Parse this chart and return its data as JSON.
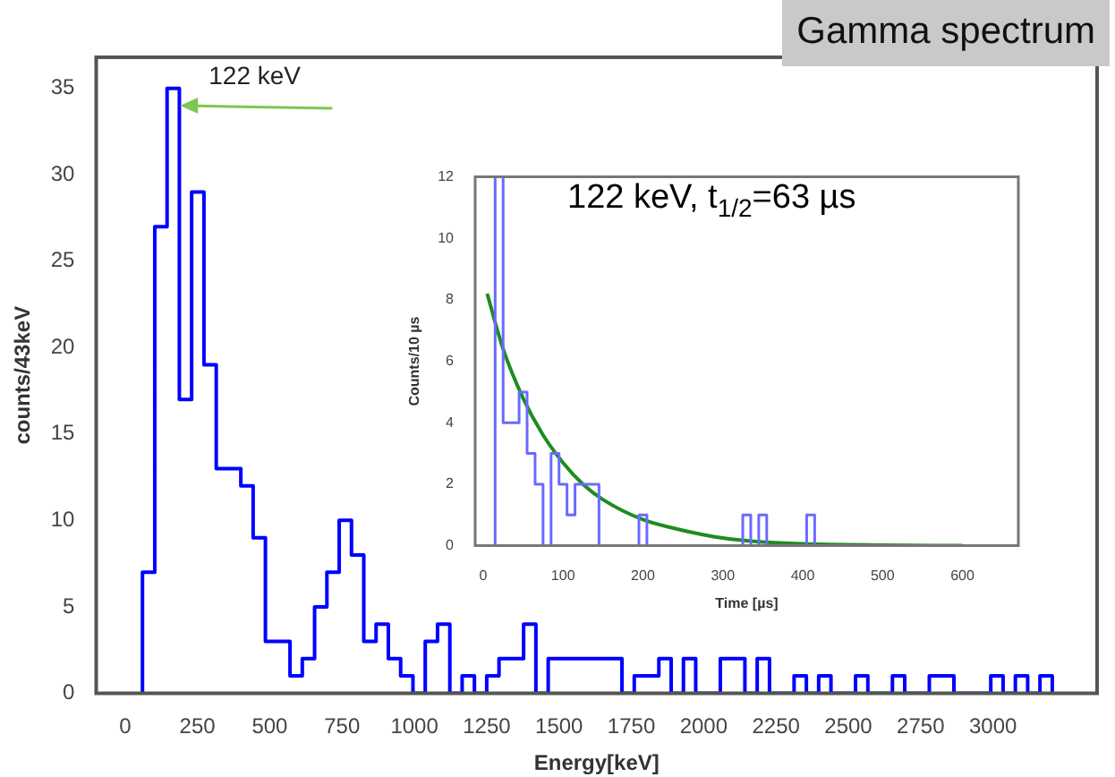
{
  "chart_data": [
    {
      "type": "histogram",
      "title": "Gamma spectrum",
      "xlabel": "Energy[keV]",
      "ylabel": "counts/43keV",
      "color": "#0000ff",
      "bins": [
        60,
        102.5,
        145,
        187.5,
        230,
        272.5,
        315,
        357.5,
        400,
        442.5,
        485,
        527.5,
        570,
        612.5,
        655,
        697.5,
        740,
        782.5,
        825,
        867.5,
        910,
        952.5,
        995,
        1037.5,
        1080,
        1122.5,
        1165,
        1207.5,
        1250,
        1292.5,
        1335,
        1377.5,
        1420,
        1462.5,
        1505,
        1547.5,
        1590,
        1632.5,
        1675,
        1717.5,
        1760,
        1802.5,
        1845,
        1887.5,
        1930,
        1972.5,
        2015,
        2057.5,
        2100,
        2142.5,
        2185,
        2227.5,
        2270,
        2312.5,
        2355,
        2397.5,
        2440,
        2482.5,
        2525,
        2567.5,
        2610,
        2652.5,
        2695,
        2737.5,
        2780,
        2822.5,
        2865,
        2907.5,
        2950,
        2992.5,
        3035,
        3077.5,
        3120,
        3162.5,
        3205
      ],
      "values": [
        7,
        27,
        35,
        17,
        29,
        19,
        13,
        13,
        12,
        9,
        3,
        3,
        1,
        2,
        5,
        7,
        10,
        8,
        3,
        4,
        2,
        1,
        0,
        3,
        4,
        0,
        1,
        0,
        1,
        2,
        2,
        4,
        0,
        2,
        2,
        2,
        2,
        2,
        2,
        0,
        1,
        1,
        2,
        0,
        2,
        0,
        0,
        2,
        2,
        0,
        2,
        0,
        0,
        1,
        0,
        1,
        0,
        0,
        1,
        0,
        0,
        1,
        0,
        0,
        1,
        1,
        0,
        0,
        0,
        1,
        0,
        1,
        0,
        1
      ],
      "xlim": [
        -100,
        3360
      ],
      "ylim": [
        0,
        36.8
      ],
      "xticks": [
        0,
        250,
        500,
        750,
        1000,
        1250,
        1500,
        1750,
        2000,
        2250,
        2500,
        2750,
        3000
      ],
      "yticks": [
        0,
        5,
        10,
        15,
        20,
        25,
        30,
        35
      ],
      "annotations": [
        {
          "text": "122 keV",
          "x": 190,
          "y": 34
        }
      ]
    },
    {
      "type": "histogram",
      "annotations": [
        "122 keV, t$_{1/2}$=63 µs"
      ],
      "xlabel": "Time [µs]",
      "ylabel": "Counts/10 µs",
      "series": [
        {
          "type": "histogram",
          "color": "#6a6aff",
          "bins": [
            15,
            25,
            35,
            45,
            55,
            65,
            75,
            85,
            95,
            105,
            115,
            125,
            135,
            145,
            155,
            165,
            175,
            185,
            195,
            205,
            215,
            225,
            235,
            245,
            255,
            265,
            275,
            285,
            295,
            305,
            315,
            325,
            335,
            345,
            355,
            365,
            375,
            385,
            395,
            405,
            415
          ],
          "values": [
            12,
            4,
            4,
            5,
            3,
            2,
            0,
            3,
            2,
            1,
            2,
            2,
            2,
            0,
            0,
            0,
            0,
            0,
            1,
            0,
            0,
            0,
            0,
            0,
            0,
            0,
            0,
            0,
            0,
            0,
            0,
            1,
            0,
            1,
            0,
            0,
            0,
            0,
            0,
            1
          ]
        },
        {
          "type": "line",
          "color": "#1e8c1e",
          "x": [
            5,
            25,
            50,
            75,
            100,
            125,
            150,
            200,
            250,
            300,
            350,
            400,
            500,
            600
          ],
          "values": [
            8.2,
            6.4,
            4.8,
            3.6,
            2.7,
            2.0,
            1.5,
            0.85,
            0.5,
            0.25,
            0.12,
            0.06,
            0.02,
            0
          ]
        }
      ],
      "xlim": [
        -10,
        670
      ],
      "ylim": [
        0,
        12
      ],
      "xticks": [
        0,
        100,
        200,
        300,
        400,
        500,
        600
      ],
      "yticks": [
        0,
        2,
        4,
        6,
        8,
        10,
        12
      ]
    }
  ]
}
